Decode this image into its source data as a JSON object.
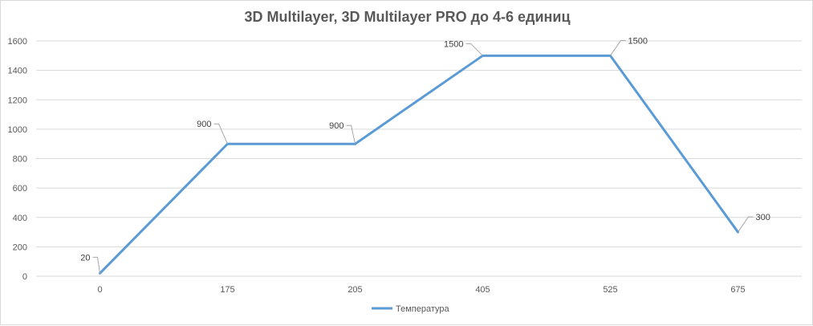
{
  "chart_data": {
    "type": "line",
    "title": "3D Multilayer, 3D Multilayer PRO до 4-6 единиц",
    "xlabel": "",
    "ylabel": "",
    "categories": [
      "0",
      "175",
      "205",
      "405",
      "525",
      "675"
    ],
    "series": [
      {
        "name": "Температура",
        "values": [
          20,
          900,
          900,
          1500,
          1500,
          300
        ],
        "color": "#5b9bd5"
      }
    ],
    "data_labels": [
      "20",
      "900",
      "900",
      "1500",
      "1500",
      "300"
    ],
    "ylim": [
      0,
      1600
    ],
    "yticks": [
      "0",
      "200",
      "400",
      "600",
      "800",
      "1000",
      "1200",
      "1400",
      "1600"
    ],
    "grid": true,
    "legend_position": "bottom"
  },
  "colors": {
    "series_line": "#5b9bd5",
    "gridline": "#d9d9d9",
    "text": "#595959",
    "leader": "#a6a6a6"
  }
}
